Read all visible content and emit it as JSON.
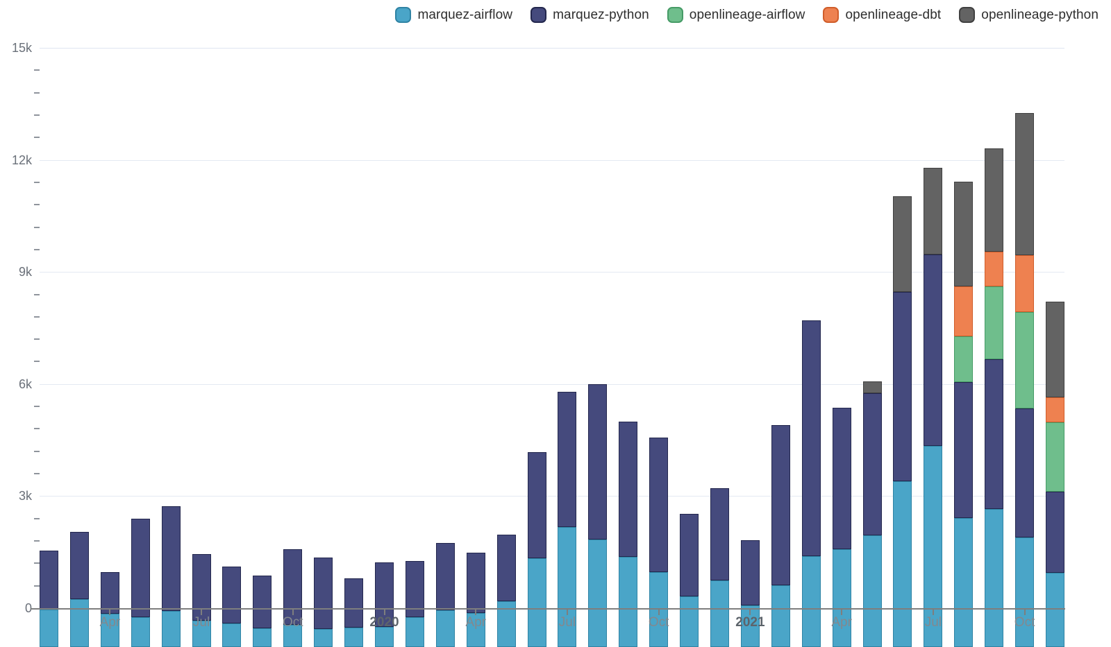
{
  "legend": {
    "items": [
      {
        "label": "marquez-airflow",
        "color": "#4aa5c8",
        "border": "#2f83a4"
      },
      {
        "label": "marquez-python",
        "color": "#454a7d",
        "border": "#23274d"
      },
      {
        "label": "openlineage-airflow",
        "color": "#6fbe8c",
        "border": "#469b66"
      },
      {
        "label": "openlineage-dbt",
        "color": "#ee8150",
        "border": "#d05d2a"
      },
      {
        "label": "openlineage-python",
        "color": "#636363",
        "border": "#404040"
      }
    ]
  },
  "y_axis": {
    "ticks": [
      {
        "value": 0,
        "label": "0"
      },
      {
        "value": 3000,
        "label": "3k"
      },
      {
        "value": 6000,
        "label": "6k"
      },
      {
        "value": 9000,
        "label": "9k"
      },
      {
        "value": 12000,
        "label": "12k"
      },
      {
        "value": 15000,
        "label": "15k"
      }
    ],
    "minor_step": 600
  },
  "x_axis": {
    "ticks": [
      {
        "month_index": 2,
        "label": "Apr",
        "bold": false
      },
      {
        "month_index": 5,
        "label": "Jul",
        "bold": false
      },
      {
        "month_index": 8,
        "label": "Oct",
        "bold": false
      },
      {
        "month_index": 11,
        "label": "2020",
        "bold": true
      },
      {
        "month_index": 14,
        "label": "Apr",
        "bold": false
      },
      {
        "month_index": 17,
        "label": "Jul",
        "bold": false
      },
      {
        "month_index": 20,
        "label": "Oct",
        "bold": false
      },
      {
        "month_index": 23,
        "label": "2021",
        "bold": true
      },
      {
        "month_index": 26,
        "label": "Apr",
        "bold": false
      },
      {
        "month_index": 29,
        "label": "Jul",
        "bold": false
      },
      {
        "month_index": 32,
        "label": "Oct",
        "bold": false
      }
    ]
  },
  "chart_data": {
    "type": "bar",
    "stacked": true,
    "title": "",
    "xlabel": "",
    "ylabel": "",
    "ylim": [
      0,
      15000
    ],
    "grid": "horizontal-major",
    "legend_position": "top-right",
    "categories": [
      "Feb 2019",
      "Mar 2019",
      "Apr 2019",
      "May 2019",
      "Jun 2019",
      "Jul 2019",
      "Aug 2019",
      "Sep 2019",
      "Oct 2019",
      "Nov 2019",
      "Dec 2019",
      "Jan 2020",
      "Feb 2020",
      "Mar 2020",
      "Apr 2020",
      "May 2020",
      "Jun 2020",
      "Jul 2020",
      "Aug 2020",
      "Sep 2020",
      "Oct 2020",
      "Nov 2020",
      "Dec 2020",
      "Jan 2021",
      "Feb 2021",
      "Mar 2021",
      "Apr 2021",
      "May 2021",
      "Jun 2021",
      "Jul 2021",
      "Aug 2021",
      "Sep 2021",
      "Oct 2021",
      "Nov 2021"
    ],
    "series": [
      {
        "name": "marquez-airflow",
        "color": "#4aa5c8",
        "border": "#2f83a4",
        "values": [
          1000,
          1290,
          900,
          790,
          960,
          710,
          640,
          510,
          590,
          480,
          520,
          530,
          800,
          980,
          910,
          1220,
          2380,
          3220,
          2880,
          2410,
          2010,
          1350,
          1780,
          1120,
          1660,
          2440,
          2610,
          2990,
          4430,
          5390,
          3460,
          3700,
          2940,
          1980
        ]
      },
      {
        "name": "marquez-python",
        "color": "#454a7d",
        "border": "#23274d",
        "values": [
          1575,
          1790,
          1110,
          2640,
          2800,
          1770,
          1520,
          1410,
          2020,
          1920,
          1310,
          1740,
          1500,
          1800,
          1610,
          1780,
          2830,
          3620,
          4160,
          3630,
          3590,
          2220,
          2470,
          1740,
          4290,
          6310,
          3800,
          3810,
          5070,
          5120,
          3640,
          4000,
          3440,
          2170
        ]
      },
      {
        "name": "openlineage-airflow",
        "color": "#6fbe8c",
        "border": "#469b66",
        "values": [
          0,
          0,
          0,
          0,
          0,
          0,
          0,
          0,
          0,
          0,
          0,
          0,
          0,
          0,
          0,
          0,
          0,
          0,
          0,
          0,
          0,
          0,
          0,
          0,
          0,
          0,
          0,
          0,
          0,
          0,
          1220,
          1950,
          2590,
          1870
        ]
      },
      {
        "name": "openlineage-dbt",
        "color": "#ee8150",
        "border": "#d05d2a",
        "values": [
          0,
          0,
          0,
          0,
          0,
          0,
          0,
          0,
          0,
          0,
          0,
          0,
          0,
          0,
          0,
          0,
          0,
          0,
          0,
          0,
          0,
          0,
          0,
          0,
          0,
          0,
          0,
          0,
          0,
          0,
          1330,
          940,
          1520,
          670
        ]
      },
      {
        "name": "openlineage-python",
        "color": "#636363",
        "border": "#404040",
        "values": [
          0,
          0,
          0,
          0,
          0,
          0,
          0,
          0,
          0,
          0,
          0,
          0,
          0,
          0,
          0,
          0,
          0,
          0,
          0,
          0,
          0,
          0,
          0,
          0,
          0,
          0,
          0,
          310,
          2570,
          2320,
          2810,
          2750,
          3810,
          2560
        ]
      }
    ]
  }
}
